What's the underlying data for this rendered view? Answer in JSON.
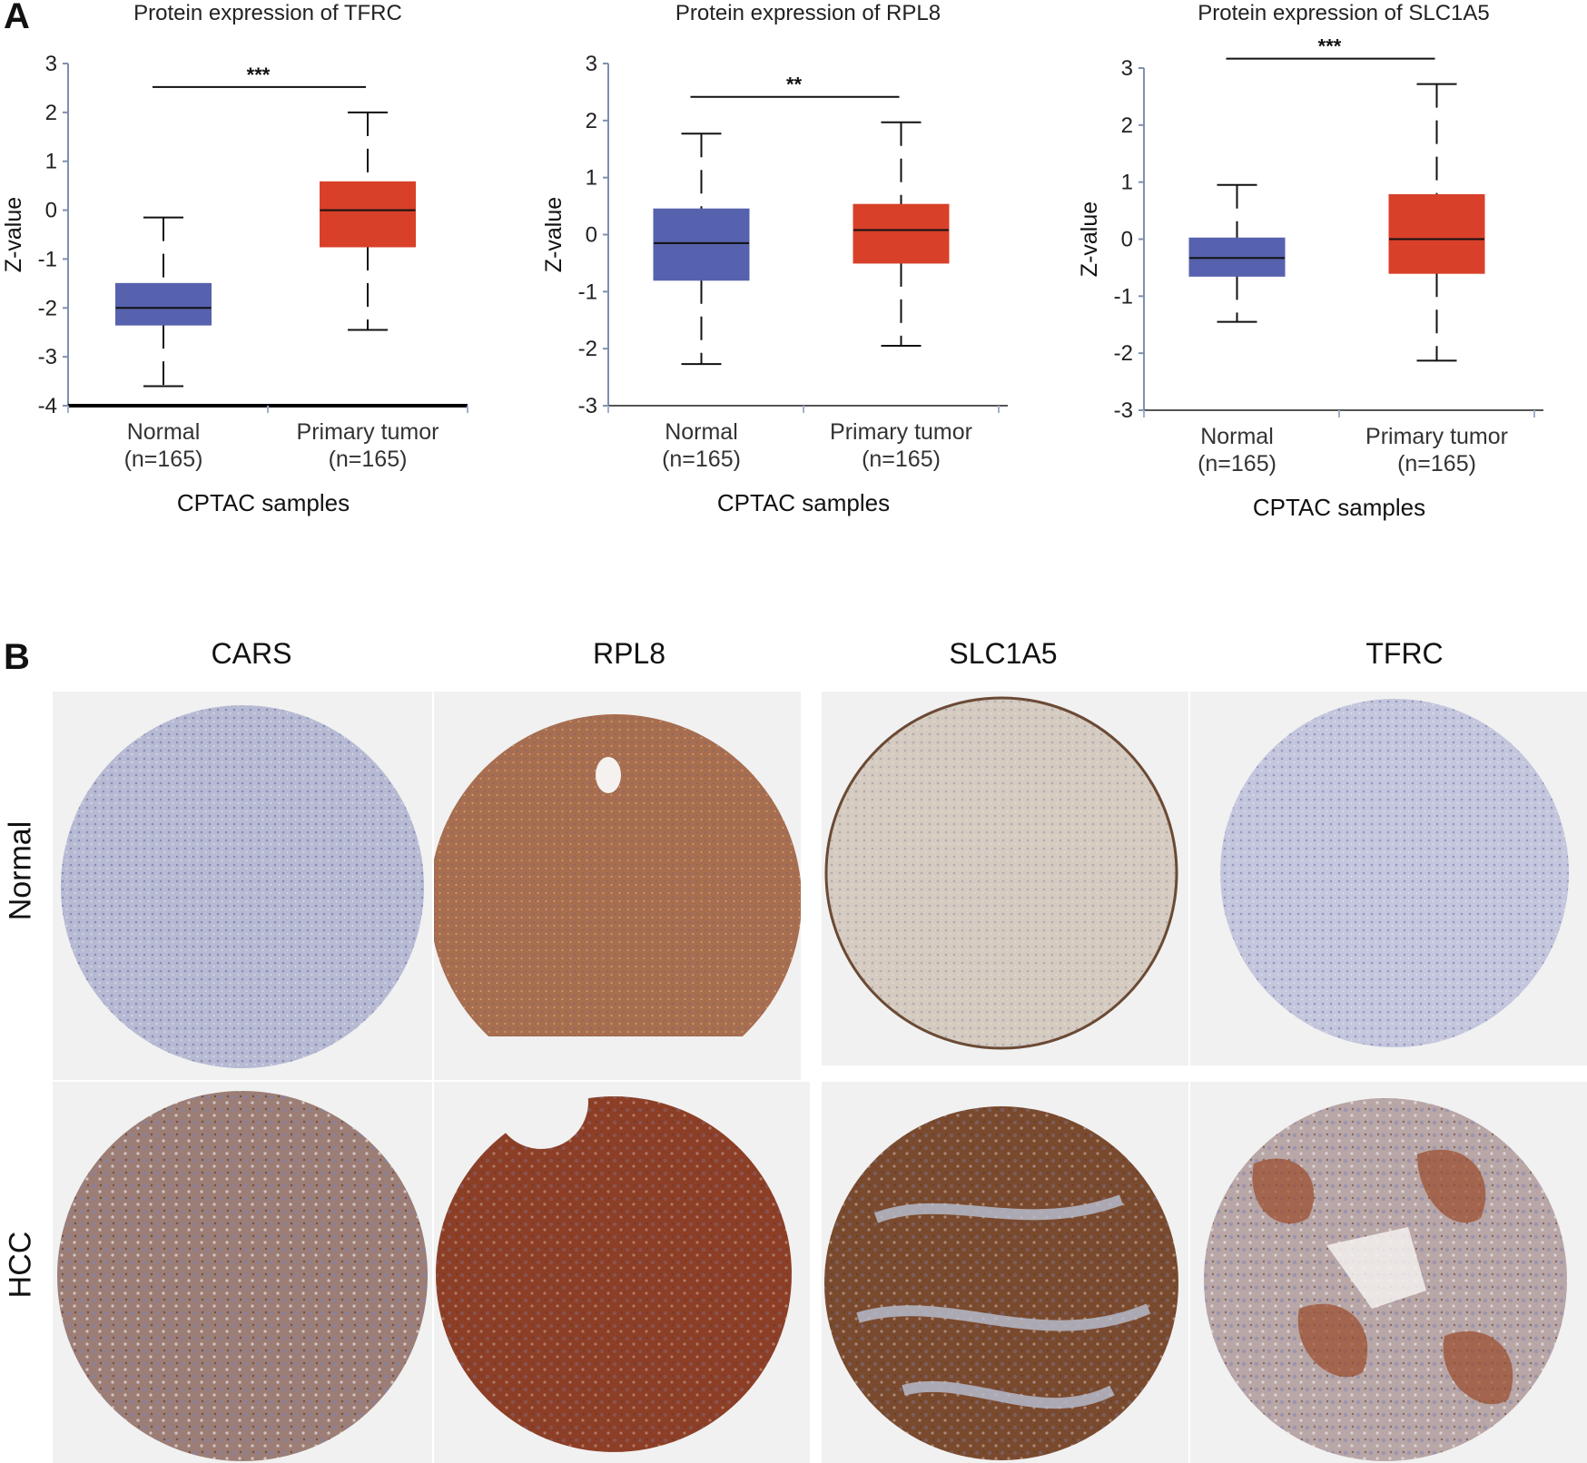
{
  "panels": {
    "a": "A",
    "b": "B"
  },
  "chart_data": [
    {
      "type": "box",
      "title": "Protein expression of TFRC",
      "xlabel": "CPTAC samples",
      "ylabel": "Z-value",
      "ylim": [
        -4,
        3
      ],
      "yticks": [
        "3",
        "2",
        "1",
        "0",
        "-1",
        "-2",
        "-3",
        "-4"
      ],
      "categories": [
        [
          "Normal",
          "(n=165)"
        ],
        [
          "Primary tumor",
          "(n=165)"
        ]
      ],
      "significance": "***",
      "boxes": [
        {
          "min": -3.6,
          "q1": -2.35,
          "median": -2.0,
          "q3": -1.5,
          "max": -0.15,
          "color": "#5662ae"
        },
        {
          "min": -2.45,
          "q1": -0.75,
          "median": 0.0,
          "q3": 0.58,
          "max": 2.0,
          "color": "#d8402a"
        }
      ]
    },
    {
      "type": "box",
      "title": "Protein expression of RPL8",
      "xlabel": "CPTAC samples",
      "ylabel": "Z-value",
      "ylim": [
        -3,
        3
      ],
      "yticks": [
        "3",
        "2",
        "1",
        "0",
        "-1",
        "-2",
        "-3"
      ],
      "categories": [
        [
          "Normal",
          "(n=165)"
        ],
        [
          "Primary tumor",
          "(n=165)"
        ]
      ],
      "significance": "**",
      "boxes": [
        {
          "min": -2.27,
          "q1": -0.8,
          "median": -0.15,
          "q3": 0.45,
          "max": 1.77,
          "color": "#5662ae"
        },
        {
          "min": -1.95,
          "q1": -0.5,
          "median": 0.08,
          "q3": 0.53,
          "max": 1.97,
          "color": "#d8402a"
        }
      ]
    },
    {
      "type": "box",
      "title": "Protein expression of SLC1A5",
      "xlabel": "CPTAC samples",
      "ylabel": "Z-value",
      "ylim": [
        -3,
        3
      ],
      "yticks": [
        "3",
        "2",
        "1",
        "0",
        "-1",
        "-2",
        "-3"
      ],
      "categories": [
        [
          "Normal",
          "(n=165)"
        ],
        [
          "Primary tumor",
          "(n=165)"
        ]
      ],
      "significance": "***",
      "boxes": [
        {
          "min": -1.45,
          "q1": -0.65,
          "median": -0.33,
          "q3": 0.02,
          "max": 0.95,
          "color": "#5662ae"
        },
        {
          "min": -2.13,
          "q1": -0.6,
          "median": 0.0,
          "q3": 0.78,
          "max": 2.72,
          "color": "#d8402a"
        }
      ]
    }
  ],
  "ihc": {
    "genes": [
      "CARS",
      "RPL8",
      "SLC1A5",
      "TFRC"
    ],
    "rows": [
      "Normal",
      "HCC"
    ],
    "stain_colors": {
      "hematoxylin": "#aeb2cf",
      "normal_cars": "#b7bad3",
      "normal_rpl8": "#a86e4e",
      "normal_slc1a5": "#d5cbc0",
      "normal_tfrc": "#c3c6dc",
      "hcc_cars": "#9c7e76",
      "hcc_rpl8": "#8c3f26",
      "hcc_slc1a5": "#7a4a2e",
      "hcc_tfrc": "#b9a6a6"
    }
  }
}
